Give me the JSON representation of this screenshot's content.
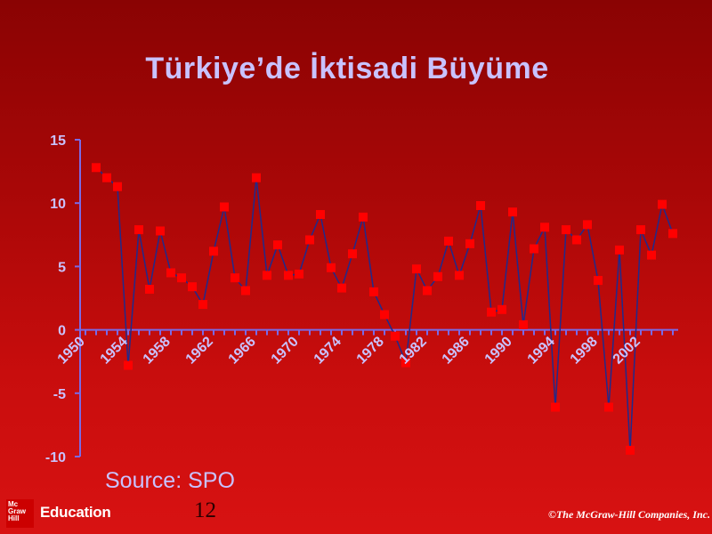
{
  "slide": {
    "title": "Türkiye’de İktisadi Büyüme",
    "source": "Source: SPO",
    "page_number": "12",
    "footer_copyright": "©The McGraw-Hill Companies, Inc.",
    "logo": {
      "line1": "Mc",
      "line2": "Graw",
      "line3": "Hill",
      "text": "Education"
    }
  },
  "colors": {
    "background": "#b00909",
    "title": "#c9c2ff",
    "axis": "#7a6ae6",
    "line": "#202a8c",
    "marker": "#ff0000"
  },
  "chart_data": {
    "type": "line",
    "title": "",
    "xlabel": "",
    "ylabel": "",
    "ylim": [
      -10,
      15
    ],
    "yticks": [
      -10,
      -5,
      0,
      5,
      10,
      15
    ],
    "x_tick_labels": [
      "1950",
      "1954",
      "1958",
      "1962",
      "1966",
      "1970",
      "1974",
      "1978",
      "1982",
      "1986",
      "1990",
      "1994",
      "1998",
      "2002"
    ],
    "grid": false,
    "legend": "none",
    "markers": "square",
    "x": [
      1951,
      1952,
      1953,
      1954,
      1955,
      1956,
      1957,
      1958,
      1959,
      1960,
      1961,
      1962,
      1963,
      1964,
      1965,
      1966,
      1967,
      1968,
      1969,
      1970,
      1971,
      1972,
      1973,
      1974,
      1975,
      1976,
      1977,
      1978,
      1979,
      1980,
      1981,
      1982,
      1983,
      1984,
      1985,
      1986,
      1987,
      1988,
      1989,
      1990,
      1991,
      1992,
      1993,
      1994,
      1995,
      1996,
      1997,
      1998,
      1999,
      2000,
      2001,
      2002,
      2003,
      2004,
      2005
    ],
    "values": [
      12.8,
      12.0,
      11.3,
      -2.8,
      7.9,
      3.2,
      7.8,
      4.5,
      4.1,
      3.4,
      2.0,
      6.2,
      9.7,
      4.1,
      3.1,
      12.0,
      4.3,
      6.7,
      4.3,
      4.4,
      7.1,
      9.1,
      4.9,
      3.3,
      6.0,
      8.9,
      3.0,
      1.2,
      -0.5,
      -2.6,
      4.8,
      3.1,
      4.2,
      7.0,
      4.3,
      6.8,
      9.8,
      1.4,
      1.6,
      9.3,
      0.4,
      6.4,
      8.1,
      -6.1,
      7.9,
      7.1,
      8.3,
      3.9,
      -6.1,
      6.3,
      -9.5,
      7.9,
      5.9,
      9.9,
      7.6
    ]
  }
}
